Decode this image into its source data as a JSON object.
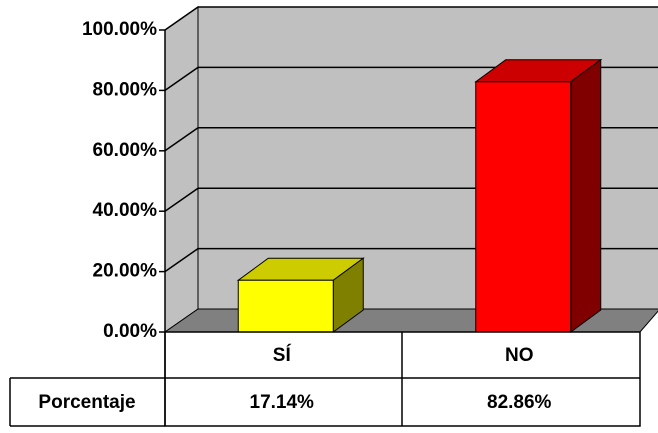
{
  "chart_data": {
    "type": "bar3d",
    "categories": [
      "SÍ",
      "NO"
    ],
    "colors": [
      "#ffff00",
      "#ff0000"
    ],
    "series": [
      {
        "name": "Porcentaje",
        "values": [
          17.14,
          82.86
        ],
        "value_labels": [
          "17.14%",
          "82.86%"
        ]
      }
    ],
    "ylim": [
      0,
      100
    ],
    "yticks": [
      {
        "value": 0,
        "label": "0.00%"
      },
      {
        "value": 20,
        "label": "20.00%"
      },
      {
        "value": 40,
        "label": "40.00%"
      },
      {
        "value": 60,
        "label": "60.00%"
      },
      {
        "value": 80,
        "label": "80.00%"
      },
      {
        "value": 100,
        "label": "100.00%"
      }
    ],
    "grid": true
  }
}
